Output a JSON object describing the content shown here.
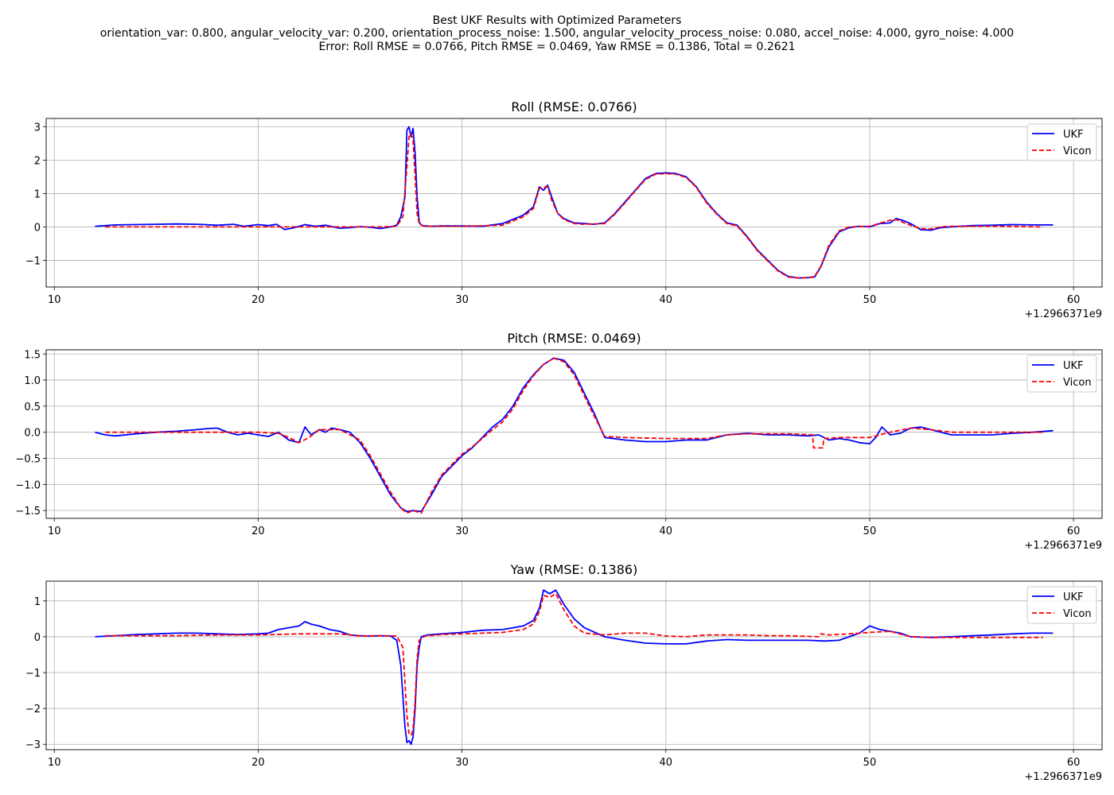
{
  "figure": {
    "suptitle_lines": [
      "Best UKF Results with Optimized Parameters",
      "orientation_var: 0.800, angular_velocity_var: 0.200, orientation_process_noise: 1.500, angular_velocity_process_noise: 0.080, accel_noise: 4.000, gyro_noise: 4.000",
      "Error: Roll RMSE = 0.0766, Pitch RMSE = 0.0469, Yaw RMSE = 0.1386, Total = 0.2621"
    ],
    "colors": {
      "ukf": "#0000ff",
      "vicon": "#ff0000",
      "grid": "#b0b0b0",
      "axes": "#000000"
    }
  },
  "chart_data": [
    {
      "type": "line",
      "title": "Roll (RMSE: 0.0766)",
      "xlabel": "",
      "ylabel": "",
      "x_offset_label": "+1.2966371e9",
      "xlim": [
        9.6,
        61.4
      ],
      "ylim": [
        -1.8,
        3.25
      ],
      "xticks": [
        10,
        20,
        30,
        40,
        50,
        60
      ],
      "yticks": [
        -1,
        0,
        1,
        2,
        3
      ],
      "ytick_labels": [
        "−1",
        "0",
        "1",
        "2",
        "3"
      ],
      "grid": true,
      "legend": "upper right",
      "series": [
        {
          "name": "UKF",
          "style": "solid",
          "x": [
            12,
            13,
            14,
            15,
            16,
            17,
            18,
            18.8,
            19.3,
            20,
            20.5,
            20.9,
            21.3,
            21.8,
            22.3,
            22.8,
            23.3,
            24,
            24.5,
            25,
            25.5,
            26,
            26.5,
            26.8,
            27,
            27.2,
            27.3,
            27.4,
            27.5,
            27.6,
            27.7,
            27.8,
            27.9,
            28,
            28.2,
            28.5,
            29,
            30,
            31,
            32,
            33,
            33.5,
            33.8,
            34,
            34.2,
            34.4,
            34.7,
            35,
            35.5,
            36,
            36.5,
            37,
            37.5,
            38,
            38.5,
            39,
            39.5,
            40,
            40.5,
            41,
            41.5,
            42,
            42.5,
            43,
            43.5,
            44,
            44.5,
            45,
            45.5,
            46,
            46.5,
            47,
            47.3,
            47.6,
            48,
            48.5,
            49,
            49.5,
            50,
            50.5,
            51,
            51.3,
            51.7,
            52,
            52.5,
            53,
            53.5,
            54,
            55,
            56,
            57,
            58,
            59
          ],
          "y": [
            0.02,
            0.06,
            0.07,
            0.08,
            0.09,
            0.08,
            0.05,
            0.08,
            0.02,
            0.07,
            0.04,
            0.08,
            -0.08,
            -0.02,
            0.07,
            0.02,
            0.05,
            -0.04,
            -0.02,
            0.01,
            -0.01,
            -0.05,
            0.0,
            0.05,
            0.3,
            0.9,
            2.9,
            3.0,
            2.7,
            2.95,
            2.2,
            0.9,
            0.15,
            0.05,
            0.03,
            0.02,
            0.03,
            0.03,
            0.02,
            0.1,
            0.35,
            0.6,
            1.2,
            1.1,
            1.25,
            0.9,
            0.4,
            0.25,
            0.12,
            0.1,
            0.08,
            0.12,
            0.4,
            0.75,
            1.1,
            1.45,
            1.6,
            1.62,
            1.6,
            1.5,
            1.2,
            0.75,
            0.4,
            0.12,
            0.05,
            -0.3,
            -0.7,
            -1.0,
            -1.3,
            -1.48,
            -1.53,
            -1.52,
            -1.5,
            -1.2,
            -0.6,
            -0.15,
            -0.02,
            0.02,
            0.0,
            0.1,
            0.12,
            0.25,
            0.18,
            0.1,
            -0.08,
            -0.1,
            -0.02,
            0.0,
            0.04,
            0.05,
            0.07,
            0.06,
            0.06
          ]
        },
        {
          "name": "Vicon",
          "style": "dashed",
          "x": [
            12.5,
            14,
            16,
            18,
            20,
            21,
            22,
            23,
            24,
            25,
            26,
            26.8,
            27.1,
            27.3,
            27.4,
            27.5,
            27.6,
            27.7,
            27.8,
            27.9,
            28.1,
            28.5,
            30,
            32,
            33,
            33.5,
            33.8,
            34,
            34.2,
            34.4,
            34.7,
            35,
            35.5,
            36,
            37,
            37.5,
            38,
            38.5,
            39,
            39.5,
            40,
            40.5,
            41,
            41.5,
            42,
            42.5,
            43,
            43.5,
            44,
            44.5,
            45,
            45.5,
            46,
            46.5,
            47,
            47.3,
            47.6,
            48,
            48.5,
            49,
            50,
            51,
            51.3,
            51.7,
            52,
            52.5,
            53,
            53.5,
            54,
            56,
            58.5
          ],
          "y": [
            0.0,
            0.0,
            0.0,
            0.0,
            0.0,
            0.0,
            0.0,
            0.0,
            0.0,
            0.0,
            0.0,
            0.02,
            0.3,
            1.8,
            2.7,
            2.8,
            2.6,
            1.5,
            0.4,
            0.1,
            0.03,
            0.02,
            0.02,
            0.05,
            0.3,
            0.55,
            1.15,
            1.2,
            1.2,
            0.8,
            0.4,
            0.22,
            0.1,
            0.08,
            0.1,
            0.38,
            0.72,
            1.08,
            1.42,
            1.58,
            1.6,
            1.58,
            1.48,
            1.18,
            0.72,
            0.38,
            0.1,
            0.03,
            -0.32,
            -0.72,
            -1.02,
            -1.32,
            -1.5,
            -1.53,
            -1.52,
            -1.48,
            -1.18,
            -0.55,
            -0.12,
            0.0,
            0.02,
            0.2,
            0.22,
            0.12,
            0.05,
            -0.05,
            -0.06,
            0.0,
            0.02,
            0.02,
            0.0
          ]
        }
      ]
    },
    {
      "type": "line",
      "title": "Pitch (RMSE: 0.0469)",
      "xlabel": "",
      "ylabel": "",
      "x_offset_label": "+1.2966371e9",
      "xlim": [
        9.6,
        61.4
      ],
      "ylim": [
        -1.65,
        1.58
      ],
      "xticks": [
        10,
        20,
        30,
        40,
        50,
        60
      ],
      "yticks": [
        -1.5,
        -1.0,
        -0.5,
        0.0,
        0.5,
        1.0,
        1.5
      ],
      "ytick_labels": [
        "−1.5",
        "−1.0",
        "−0.5",
        "0.0",
        "0.5",
        "1.0",
        "1.5"
      ],
      "grid": true,
      "legend": "upper right",
      "series": [
        {
          "name": "UKF",
          "style": "solid",
          "x": [
            12,
            12.5,
            13,
            14,
            15,
            16,
            17,
            17.5,
            18,
            18.5,
            19,
            19.5,
            20,
            20.5,
            21,
            21.5,
            22,
            22.3,
            22.6,
            23,
            23.3,
            23.6,
            24,
            24.5,
            25,
            25.5,
            26,
            26.5,
            27,
            27.3,
            27.6,
            28,
            28.5,
            29,
            29.5,
            30,
            30.5,
            31,
            31.5,
            32,
            32.5,
            33,
            33.5,
            34,
            34.5,
            35,
            35.5,
            36,
            36.5,
            37,
            38,
            39,
            40,
            41,
            42,
            43,
            44,
            45,
            46,
            47,
            47.5,
            48,
            48.5,
            49,
            49.5,
            50,
            50.3,
            50.6,
            51,
            51.5,
            52,
            52.5,
            53,
            54,
            55,
            56,
            57,
            58,
            59
          ],
          "y": [
            0.0,
            -0.05,
            -0.07,
            -0.03,
            0.0,
            0.02,
            0.05,
            0.07,
            0.08,
            0.0,
            -0.05,
            -0.02,
            -0.05,
            -0.08,
            0.0,
            -0.15,
            -0.2,
            0.1,
            -0.05,
            0.05,
            0.0,
            0.08,
            0.05,
            0.0,
            -0.2,
            -0.5,
            -0.85,
            -1.2,
            -1.45,
            -1.52,
            -1.5,
            -1.52,
            -1.2,
            -0.85,
            -0.65,
            -0.45,
            -0.3,
            -0.1,
            0.1,
            0.25,
            0.5,
            0.85,
            1.1,
            1.3,
            1.42,
            1.38,
            1.15,
            0.75,
            0.35,
            -0.1,
            -0.15,
            -0.18,
            -0.18,
            -0.15,
            -0.15,
            -0.05,
            -0.02,
            -0.05,
            -0.05,
            -0.07,
            -0.05,
            -0.15,
            -0.12,
            -0.15,
            -0.2,
            -0.22,
            -0.1,
            0.1,
            -0.05,
            -0.02,
            0.08,
            0.1,
            0.05,
            -0.05,
            -0.05,
            -0.05,
            -0.02,
            0.0,
            0.03
          ]
        },
        {
          "name": "Vicon",
          "style": "dashed",
          "x": [
            12.5,
            14,
            16,
            18,
            20,
            21,
            21.5,
            22,
            22.5,
            23,
            24,
            25,
            25.5,
            26,
            26.5,
            27,
            27.3,
            27.6,
            28,
            28.5,
            29,
            29.5,
            30,
            30.5,
            31,
            31.5,
            32,
            32.5,
            33,
            33.5,
            34,
            34.5,
            35,
            35.5,
            36,
            36.5,
            37,
            38,
            40,
            42,
            43,
            44,
            46,
            47.2,
            47.25,
            47.7,
            47.75,
            48.5,
            50,
            51,
            52,
            53,
            54,
            56,
            58.5
          ],
          "y": [
            0.0,
            0.0,
            0.0,
            0.0,
            0.0,
            -0.02,
            -0.1,
            -0.2,
            -0.1,
            0.05,
            0.05,
            -0.15,
            -0.45,
            -0.8,
            -1.15,
            -1.45,
            -1.55,
            -1.5,
            -1.55,
            -1.15,
            -0.82,
            -0.62,
            -0.42,
            -0.28,
            -0.12,
            0.05,
            0.2,
            0.45,
            0.8,
            1.08,
            1.3,
            1.42,
            1.35,
            1.1,
            0.7,
            0.3,
            -0.08,
            -0.1,
            -0.12,
            -0.12,
            -0.05,
            -0.03,
            -0.03,
            -0.05,
            -0.3,
            -0.3,
            -0.12,
            -0.1,
            -0.1,
            0.0,
            0.08,
            0.05,
            0.0,
            0.0,
            0.0
          ]
        }
      ]
    },
    {
      "type": "line",
      "title": "Yaw (RMSE: 0.1386)",
      "xlabel": "",
      "ylabel": "",
      "x_offset_label": "+1.2966371e9",
      "xlim": [
        9.6,
        61.4
      ],
      "ylim": [
        -3.15,
        1.55
      ],
      "xticks": [
        10,
        20,
        30,
        40,
        50,
        60
      ],
      "yticks": [
        -3,
        -2,
        -1,
        0,
        1
      ],
      "ytick_labels": [
        "−3",
        "−2",
        "−1",
        "0",
        "1"
      ],
      "grid": true,
      "legend": "upper right",
      "series": [
        {
          "name": "UKF",
          "style": "solid",
          "x": [
            12,
            13,
            14,
            15,
            16,
            17,
            18,
            19,
            20,
            20.5,
            21,
            21.5,
            22,
            22.3,
            22.6,
            23,
            23.5,
            24,
            24.5,
            25,
            25.5,
            26,
            26.5,
            26.8,
            27,
            27.2,
            27.3,
            27.4,
            27.5,
            27.6,
            27.7,
            27.8,
            27.9,
            28,
            28.3,
            29,
            30,
            31,
            32,
            33,
            33.5,
            33.8,
            34,
            34.3,
            34.6,
            35,
            35.5,
            36,
            37,
            38,
            39,
            40,
            41,
            42,
            43,
            44,
            45,
            46,
            47,
            47.8,
            48.5,
            49.5,
            50,
            50.5,
            51,
            51.5,
            52,
            53,
            54,
            55,
            56,
            57,
            58,
            59
          ],
          "y": [
            0.0,
            0.03,
            0.06,
            0.08,
            0.1,
            0.1,
            0.08,
            0.06,
            0.08,
            0.1,
            0.2,
            0.25,
            0.3,
            0.42,
            0.35,
            0.3,
            0.2,
            0.15,
            0.05,
            0.03,
            0.02,
            0.03,
            0.02,
            -0.1,
            -0.8,
            -2.5,
            -2.95,
            -2.9,
            -3.0,
            -2.8,
            -2.0,
            -0.8,
            -0.3,
            0.0,
            0.05,
            0.08,
            0.12,
            0.18,
            0.2,
            0.3,
            0.45,
            0.8,
            1.3,
            1.2,
            1.3,
            0.9,
            0.5,
            0.25,
            0.0,
            -0.1,
            -0.18,
            -0.2,
            -0.2,
            -0.12,
            -0.08,
            -0.1,
            -0.1,
            -0.1,
            -0.1,
            -0.12,
            -0.1,
            0.1,
            0.3,
            0.2,
            0.15,
            0.1,
            0.0,
            -0.02,
            0.0,
            0.03,
            0.05,
            0.08,
            0.1,
            0.1
          ]
        },
        {
          "name": "Vicon",
          "style": "dashed",
          "x": [
            12.5,
            14,
            16,
            18,
            20,
            22,
            24,
            25,
            26,
            26.8,
            27.1,
            27.3,
            27.4,
            27.5,
            27.6,
            27.7,
            27.8,
            27.9,
            28.2,
            29,
            30,
            31,
            32,
            33,
            33.5,
            33.8,
            34,
            34.3,
            34.6,
            35,
            35.5,
            36,
            37,
            38,
            39,
            40,
            41,
            42,
            43,
            44,
            45,
            46,
            47.5,
            47.6,
            48,
            49,
            50,
            51,
            52,
            53,
            54,
            56,
            58.5
          ],
          "y": [
            0.03,
            0.03,
            0.03,
            0.05,
            0.05,
            0.08,
            0.08,
            0.02,
            0.03,
            0.02,
            -0.3,
            -2.2,
            -2.7,
            -2.75,
            -2.6,
            -1.8,
            -0.6,
            -0.1,
            0.02,
            0.06,
            0.08,
            0.1,
            0.12,
            0.2,
            0.35,
            0.7,
            1.15,
            1.1,
            1.2,
            0.75,
            0.3,
            0.1,
            0.05,
            0.1,
            0.1,
            0.02,
            0.0,
            0.05,
            0.05,
            0.05,
            0.03,
            0.03,
            0.0,
            0.08,
            0.05,
            0.08,
            0.12,
            0.15,
            0.0,
            -0.02,
            -0.02,
            -0.02,
            -0.02
          ]
        }
      ]
    }
  ]
}
